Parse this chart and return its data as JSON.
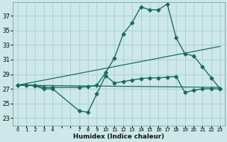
{
  "xlabel": "Humidex (Indice chaleur)",
  "bg_color": "#cce8e8",
  "grid_color": "#aacccc",
  "line_color": "#1a6b5a",
  "y_ticks": [
    23,
    25,
    27,
    29,
    31,
    33,
    35,
    37
  ],
  "xlim": [
    -0.5,
    23.5
  ],
  "ylim": [
    22.0,
    38.8
  ],
  "series1_x": [
    0,
    1,
    2,
    3,
    4,
    7,
    8,
    9,
    10,
    11,
    12,
    13,
    14,
    15,
    16,
    17,
    18,
    19,
    20,
    21,
    22,
    23
  ],
  "series1_y": [
    27.5,
    27.5,
    27.5,
    27.2,
    27.2,
    27.2,
    27.3,
    27.5,
    29.2,
    31.2,
    34.5,
    36.0,
    38.2,
    37.8,
    37.8,
    38.6,
    34.0,
    31.8,
    31.5,
    30.0,
    28.5,
    27.0
  ],
  "series2_x": [
    0,
    1,
    2,
    3,
    4,
    7,
    8,
    9,
    10,
    11,
    12,
    13,
    14,
    15,
    16,
    17,
    18,
    19,
    20,
    21,
    22,
    23
  ],
  "series2_y": [
    27.5,
    27.5,
    27.4,
    27.0,
    27.0,
    24.0,
    23.8,
    26.3,
    28.8,
    27.8,
    28.0,
    28.2,
    28.4,
    28.5,
    28.5,
    28.6,
    28.7,
    26.5,
    26.8,
    27.0,
    27.0,
    27.0
  ],
  "trend1_x": [
    0,
    23
  ],
  "trend1_y": [
    27.5,
    32.8
  ],
  "trend2_x": [
    0,
    23
  ],
  "trend2_y": [
    27.5,
    27.2
  ],
  "x_tick_labels": [
    "0",
    "1",
    "2",
    "3",
    "4",
    "",
    "",
    "7",
    "8",
    "9",
    "10",
    "11",
    "12",
    "13",
    "14",
    "15",
    "16",
    "17",
    "18",
    "19",
    "20",
    "21",
    "2223"
  ]
}
